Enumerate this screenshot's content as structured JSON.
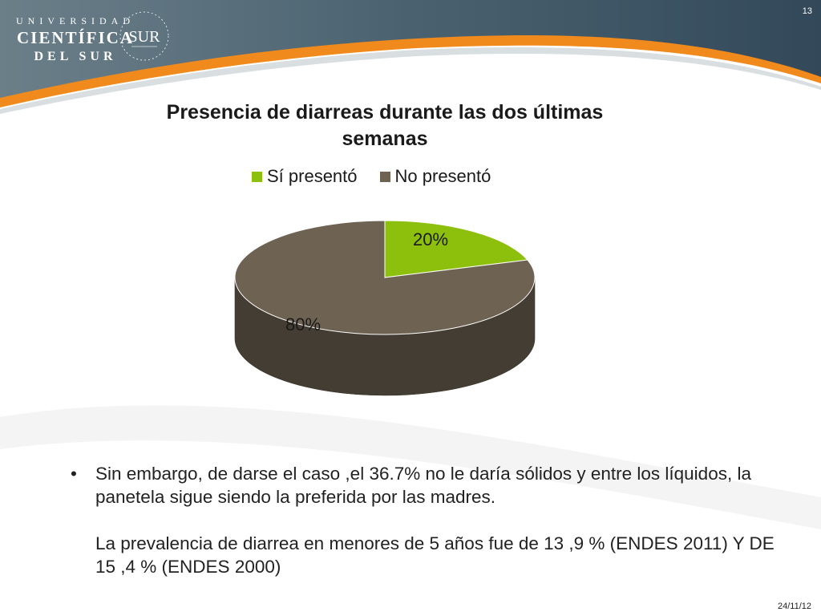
{
  "logo": {
    "line1": "UNIVERSIDAD",
    "line2": "CIENTÍFICA",
    "line3": "DEL SUR",
    "seal_text": "SUR"
  },
  "slide_number": "13",
  "footer_date": "24/11/12",
  "colors": {
    "header_dark": "#3f5866",
    "accent_orange": "#f08a1c",
    "si": "#8cc00c",
    "no": "#6e6252"
  },
  "chart_data": {
    "type": "pie",
    "title": "Presencia de diarreas durante las dos últimas semanas",
    "legend_position": "top",
    "series": [
      {
        "name": "Sí presentó",
        "value": 20,
        "label": "20%"
      },
      {
        "name": "No presentó",
        "value": 80,
        "label": "80%"
      }
    ]
  },
  "body": {
    "bullet": "•",
    "paragraph1": "Sin embargo, de darse el caso ,el 36.7% no le daría sólidos y entre los líquidos, la panetela sigue siendo la preferida por las madres.",
    "paragraph2": "La prevalencia de diarrea en menores de 5 años fue de 13 ,9 % (ENDES 2011) Y DE 15 ,4 % (ENDES 2000)"
  }
}
